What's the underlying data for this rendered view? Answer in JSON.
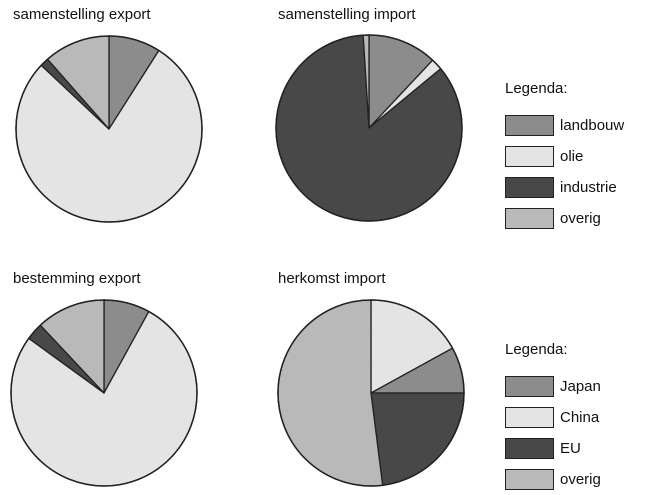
{
  "chart_data": [
    {
      "type": "pie",
      "title": "samenstelling export",
      "slices": [
        {
          "label": "landbouw",
          "value": 9,
          "color": "#8c8c8c"
        },
        {
          "label": "olie",
          "value": 78,
          "color": "#e4e4e4"
        },
        {
          "label": "industrie",
          "value": 1.5,
          "color": "#484848"
        },
        {
          "label": "overig",
          "value": 11.5,
          "color": "#b9b9b9"
        }
      ]
    },
    {
      "type": "pie",
      "title": "samenstelling import",
      "slices": [
        {
          "label": "landbouw",
          "value": 12,
          "color": "#8c8c8c"
        },
        {
          "label": "olie",
          "value": 2,
          "color": "#e4e4e4"
        },
        {
          "label": "industrie",
          "value": 85,
          "color": "#484848"
        },
        {
          "label": "overig",
          "value": 1,
          "color": "#b9b9b9"
        }
      ]
    },
    {
      "type": "pie",
      "title": "bestemming export",
      "slices": [
        {
          "label": "Japan",
          "value": 8,
          "color": "#8c8c8c"
        },
        {
          "label": "China",
          "value": 77,
          "color": "#e4e4e4"
        },
        {
          "label": "EU",
          "value": 3,
          "color": "#484848"
        },
        {
          "label": "overig",
          "value": 12,
          "color": "#b9b9b9"
        }
      ]
    },
    {
      "type": "pie",
      "title": "herkomst import",
      "slices": [
        {
          "label": "China",
          "value": 17,
          "color": "#e4e4e4"
        },
        {
          "label": "Japan",
          "value": 8,
          "color": "#8c8c8c"
        },
        {
          "label": "EU",
          "value": 23,
          "color": "#484848"
        },
        {
          "label": "overig",
          "value": 52,
          "color": "#b9b9b9"
        }
      ]
    }
  ],
  "legends": [
    {
      "title": "Legenda:",
      "items": [
        {
          "label": "landbouw",
          "color": "#8c8c8c"
        },
        {
          "label": "olie",
          "color": "#e4e4e4"
        },
        {
          "label": "industrie",
          "color": "#484848"
        },
        {
          "label": "overig",
          "color": "#b9b9b9"
        }
      ]
    },
    {
      "title": "Legenda:",
      "items": [
        {
          "label": "Japan",
          "color": "#8c8c8c"
        },
        {
          "label": "China",
          "color": "#e4e4e4"
        },
        {
          "label": "EU",
          "color": "#484848"
        },
        {
          "label": "overig",
          "color": "#b9b9b9"
        }
      ]
    }
  ]
}
